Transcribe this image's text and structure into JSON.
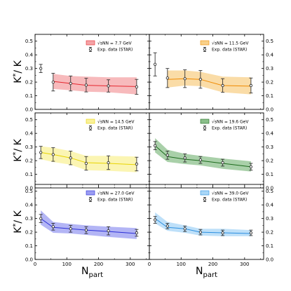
{
  "figure": {
    "ylabel": "K^* / K",
    "xlabel": "N_part",
    "xticks": [
      0,
      100,
      200,
      300
    ],
    "yticks": [
      0.0,
      0.1,
      0.2,
      0.3,
      0.4,
      0.5
    ],
    "xlim": [
      0,
      360
    ],
    "ylim": [
      0.0,
      0.55
    ]
  },
  "chart_data": [
    {
      "type": "line",
      "model_label": "√sNN = 7.7 GeV",
      "data_label": "Exp. data (STAR)",
      "color": "#e6272f",
      "band_color": "#f4a3a6",
      "model_x": [
        57,
        112,
        161,
        231,
        320
      ],
      "model_y": [
        0.205,
        0.19,
        0.177,
        0.172,
        0.168
      ],
      "band_lower": [
        0.15,
        0.14,
        0.13,
        0.125,
        0.11
      ],
      "band_upper": [
        0.26,
        0.245,
        0.24,
        0.235,
        0.235
      ],
      "exp_x": [
        18,
        57,
        112,
        161,
        231,
        320
      ],
      "exp_y": [
        0.3,
        0.2,
        0.19,
        0.178,
        0.172,
        0.165
      ],
      "exp_err": [
        0.03,
        0.065,
        0.055,
        0.05,
        0.045,
        0.055
      ]
    },
    {
      "type": "line",
      "model_label": "√sNN = 11.5 GeV",
      "data_label": "Exp. data (STAR)",
      "color": "#f08a00",
      "band_color": "#f8d08a",
      "model_x": [
        57,
        112,
        161,
        231,
        320
      ],
      "model_y": [
        0.22,
        0.225,
        0.22,
        0.175,
        0.17
      ],
      "band_lower": [
        0.16,
        0.175,
        0.17,
        0.125,
        0.11
      ],
      "band_upper": [
        0.285,
        0.285,
        0.275,
        0.24,
        0.235
      ],
      "exp_x": [
        18,
        57,
        112,
        161,
        231,
        320
      ],
      "exp_y": [
        0.33,
        0.23,
        0.225,
        0.22,
        0.175,
        0.175
      ],
      "exp_err": [
        0.085,
        0.07,
        0.065,
        0.065,
        0.05,
        0.055
      ]
    },
    {
      "type": "line",
      "model_label": "√sNN = 14.5 GeV",
      "data_label": "Exp. data (STAR)",
      "color": "#e8d400",
      "band_color": "#faf19a",
      "model_x": [
        18,
        57,
        112,
        161,
        231,
        320
      ],
      "model_y": [
        0.26,
        0.245,
        0.22,
        0.185,
        0.18,
        0.17
      ],
      "band_lower": [
        0.21,
        0.19,
        0.17,
        0.13,
        0.125,
        0.115
      ],
      "band_upper": [
        0.305,
        0.295,
        0.27,
        0.235,
        0.235,
        0.23
      ],
      "exp_x": [
        18,
        57,
        112,
        161,
        231,
        320
      ],
      "exp_y": [
        0.26,
        0.245,
        0.22,
        0.18,
        0.185,
        0.175
      ],
      "exp_err": [
        0.045,
        0.05,
        0.05,
        0.05,
        0.05,
        0.05
      ]
    },
    {
      "type": "line",
      "model_label": "√sNN = 19.6 GeV",
      "data_label": "Exp. data (STAR)",
      "color": "#1d6b1d",
      "band_color": "#8cc08c",
      "model_x": [
        18,
        57,
        112,
        161,
        231,
        320
      ],
      "model_y": [
        0.31,
        0.23,
        0.21,
        0.2,
        0.18,
        0.155
      ],
      "band_lower": [
        0.26,
        0.19,
        0.175,
        0.165,
        0.14,
        0.12
      ],
      "band_upper": [
        0.365,
        0.28,
        0.25,
        0.235,
        0.215,
        0.195
      ],
      "exp_x": [
        18,
        57,
        112,
        161,
        231,
        320
      ],
      "exp_y": [
        0.31,
        0.24,
        0.22,
        0.205,
        0.185,
        0.155
      ],
      "exp_err": [
        0.03,
        0.03,
        0.03,
        0.025,
        0.025,
        0.025
      ]
    },
    {
      "type": "line",
      "model_label": "√sNN = 27.0 GeV",
      "data_label": "Exp. data (STAR)",
      "color": "#2a2ed6",
      "band_color": "#9a9cf2",
      "model_x": [
        18,
        57,
        112,
        161,
        231,
        320
      ],
      "model_y": [
        0.3,
        0.235,
        0.225,
        0.215,
        0.205,
        0.19
      ],
      "band_lower": [
        0.255,
        0.195,
        0.19,
        0.18,
        0.165,
        0.15
      ],
      "band_upper": [
        0.36,
        0.275,
        0.26,
        0.25,
        0.24,
        0.23
      ],
      "exp_x": [
        18,
        57,
        112,
        161,
        231,
        320
      ],
      "exp_y": [
        0.3,
        0.24,
        0.225,
        0.215,
        0.21,
        0.195
      ],
      "exp_err": [
        0.03,
        0.025,
        0.025,
        0.025,
        0.03,
        0.025
      ]
    },
    {
      "type": "line",
      "model_label": "√sNN = 39.0 GeV",
      "data_label": "Exp. data (STAR)",
      "color": "#2b8fe0",
      "band_color": "#a8d6f7",
      "model_x": [
        18,
        57,
        112,
        161,
        231,
        320
      ],
      "model_y": [
        0.3,
        0.235,
        0.225,
        0.2,
        0.195,
        0.19
      ],
      "band_lower": [
        0.265,
        0.21,
        0.195,
        0.175,
        0.17,
        0.17
      ],
      "band_upper": [
        0.345,
        0.275,
        0.25,
        0.225,
        0.225,
        0.215
      ],
      "exp_x": [
        18,
        57,
        112,
        161,
        231,
        320
      ],
      "exp_y": [
        0.29,
        0.245,
        0.225,
        0.2,
        0.195,
        0.195
      ],
      "exp_err": [
        0.025,
        0.02,
        0.02,
        0.02,
        0.02,
        0.02
      ]
    }
  ]
}
